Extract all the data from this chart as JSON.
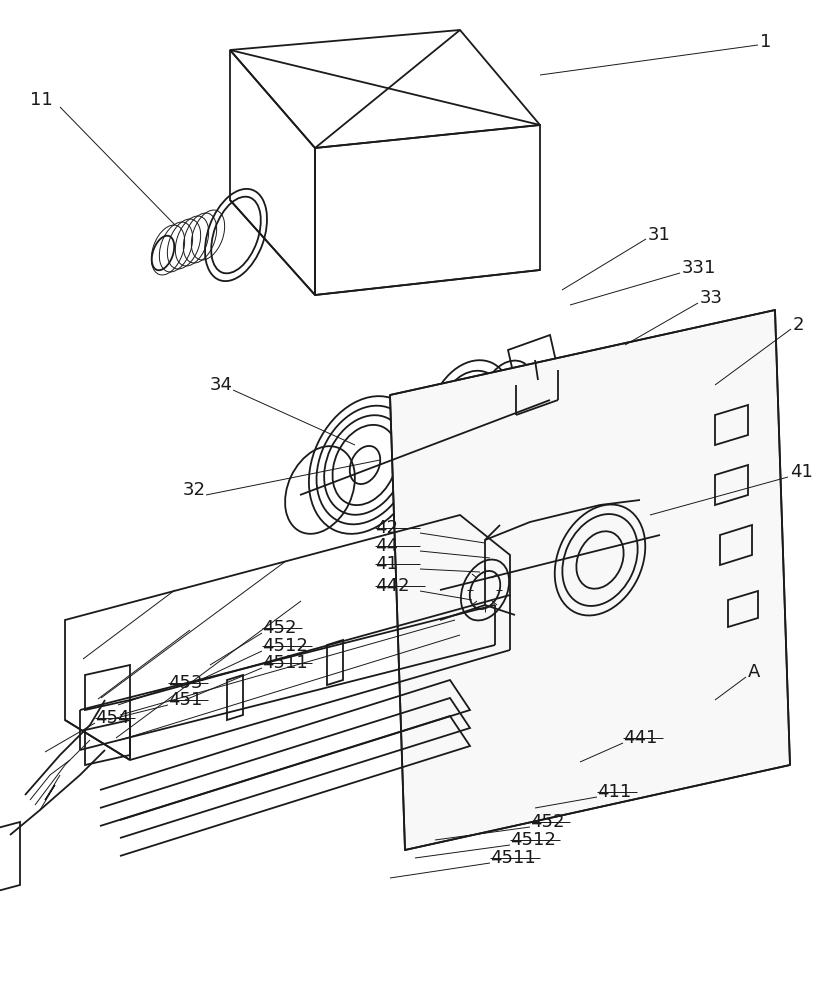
{
  "bg_color": "#ffffff",
  "line_color": "#1a1a1a",
  "lw": 1.3,
  "tlw": 0.7,
  "fig_width": 8.34,
  "fig_height": 10.0,
  "dpi": 100
}
